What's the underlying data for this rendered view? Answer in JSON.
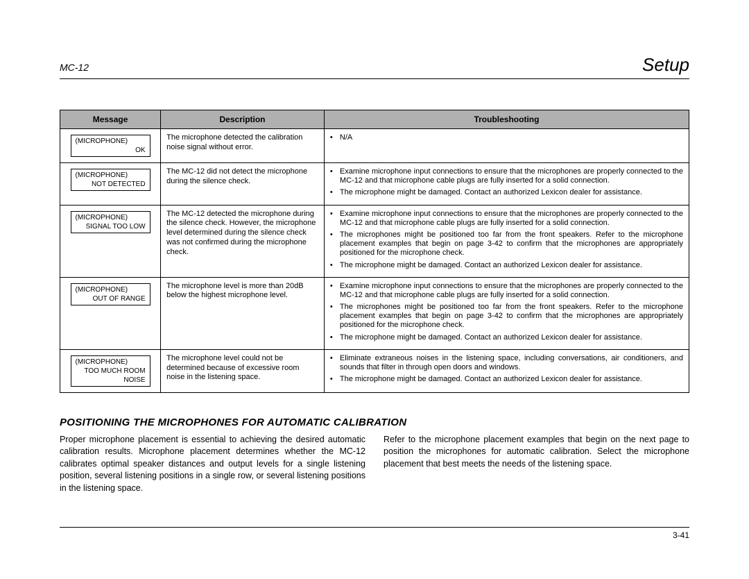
{
  "header": {
    "model": "MC-12",
    "title": "Setup"
  },
  "table": {
    "columns": {
      "message": "Message",
      "description": "Description",
      "troubleshooting": "Troubleshooting"
    },
    "column_widths": [
      "16%",
      "26%",
      "58%"
    ],
    "header_bg": "#b0b0b0",
    "rows": [
      {
        "msg1": "(MICROPHONE)",
        "msg2": "OK",
        "desc": "The microphone detected the calibration noise signal without error.",
        "trouble": [
          "N/A"
        ]
      },
      {
        "msg1": "(MICROPHONE)",
        "msg2": "NOT DETECTED",
        "desc": "The MC-12 did not detect the microphone during the silence check.",
        "trouble": [
          "Examine microphone input connections to ensure that the microphones are properly connected to the MC-12 and that microphone cable plugs are fully inserted for a solid connection.",
          "The microphone might be damaged. Contact an authorized Lexicon dealer for assistance."
        ]
      },
      {
        "msg1": "(MICROPHONE)",
        "msg2": "SIGNAL TOO LOW",
        "desc": "The MC-12 detected the microphone during the silence check. However, the microphone level determined during the silence check was not confirmed during the microphone check.",
        "trouble": [
          "Examine microphone input connections to ensure that the microphones are properly connected to the MC-12 and that microphone cable plugs are fully inserted for a solid connection.",
          "The microphones might be positioned too far from the front speakers. Refer to the microphone placement examples that begin on page 3-42 to confirm that the microphones are appropriately positioned for the microphone check.",
          "The microphone might be damaged. Contact an authorized Lexicon dealer for assistance."
        ]
      },
      {
        "msg1": "(MICROPHONE)",
        "msg2": "OUT OF RANGE",
        "desc": "The microphone level is more than 20dB below the highest microphone level.",
        "trouble": [
          "Examine microphone input connections to ensure that the microphones are properly connected to the MC-12 and that microphone cable plugs are fully inserted for a solid connection.",
          "The microphones might be positioned too far from the front speakers. Refer to the microphone placement examples that begin on page 3-42 to confirm that the microphones are appropriately positioned for the microphone check.",
          "The microphone might be damaged. Contact an authorized Lexicon dealer for assistance."
        ]
      },
      {
        "msg1": "(MICROPHONE)",
        "msg2": "TOO MUCH ROOM NOISE",
        "desc": "The microphone level could not be determined because of excessive room noise in the listening space.",
        "trouble": [
          "Eliminate extraneous noises in the listening space, including conversations, air conditioners, and sounds that filter in through open doors and windows.",
          "The microphone might be damaged. Contact an authorized Lexicon dealer for assistance."
        ]
      }
    ]
  },
  "section": {
    "heading": "POSITIONING THE MICROPHONES FOR AUTOMATIC CALIBRATION",
    "col1": "Proper microphone placement is essential to achieving the desired automatic calibration results. Microphone placement determines whether the MC-12 calibrates optimal speaker distances and output levels for a single listening position, several listening positions in a single row, or several listening positions in the listening space.",
    "col2": "Refer to the microphone placement examples that begin on the next page to position the microphones for automatic calibration. Select the microphone placement that best meets the needs of the listening space."
  },
  "footer": {
    "page": "3-41"
  }
}
